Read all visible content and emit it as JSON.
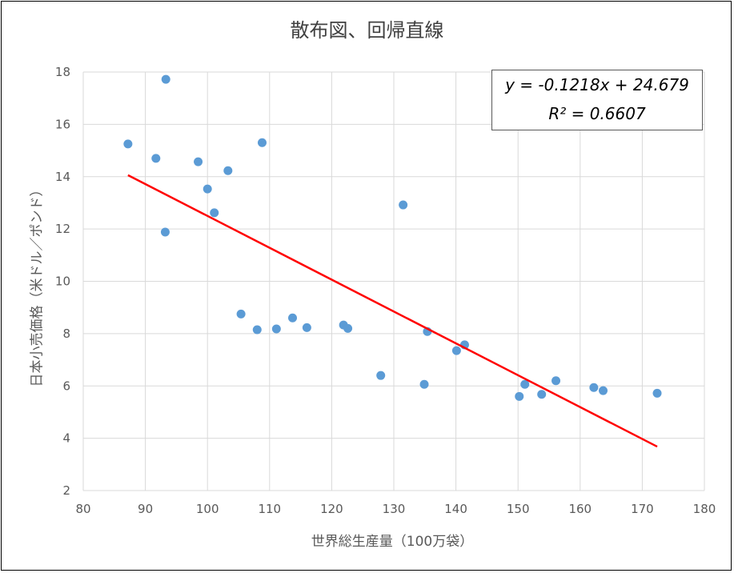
{
  "chart_data": {
    "type": "scatter",
    "title": "散布図、回帰直線",
    "xlabel": "世界総生産量（100万袋）",
    "ylabel": "日本小売価格（米ドル／ポンド）",
    "xlim": [
      80,
      180
    ],
    "ylim": [
      2,
      18
    ],
    "x_ticks": [
      "80",
      "90",
      "100",
      "110",
      "120",
      "130",
      "140",
      "150",
      "160",
      "170",
      "180"
    ],
    "y_ticks": [
      "2",
      "4",
      "6",
      "8",
      "10",
      "12",
      "14",
      "16",
      "18"
    ],
    "grid": true,
    "points": [
      {
        "x": 87.2,
        "y": 15.25
      },
      {
        "x": 91.7,
        "y": 14.7
      },
      {
        "x": 93.3,
        "y": 17.72
      },
      {
        "x": 93.2,
        "y": 11.88
      },
      {
        "x": 98.5,
        "y": 14.57
      },
      {
        "x": 100.0,
        "y": 13.53
      },
      {
        "x": 101.1,
        "y": 12.62
      },
      {
        "x": 103.3,
        "y": 14.23
      },
      {
        "x": 105.4,
        "y": 8.75
      },
      {
        "x": 108.0,
        "y": 8.15
      },
      {
        "x": 108.8,
        "y": 15.3
      },
      {
        "x": 111.1,
        "y": 8.18
      },
      {
        "x": 113.7,
        "y": 8.6
      },
      {
        "x": 116.0,
        "y": 8.23
      },
      {
        "x": 121.9,
        "y": 8.33
      },
      {
        "x": 122.6,
        "y": 8.2
      },
      {
        "x": 127.9,
        "y": 6.4
      },
      {
        "x": 131.5,
        "y": 12.92
      },
      {
        "x": 134.9,
        "y": 6.06
      },
      {
        "x": 135.4,
        "y": 8.08
      },
      {
        "x": 140.1,
        "y": 7.35
      },
      {
        "x": 141.4,
        "y": 7.57
      },
      {
        "x": 150.2,
        "y": 5.6
      },
      {
        "x": 151.1,
        "y": 6.06
      },
      {
        "x": 153.8,
        "y": 5.68
      },
      {
        "x": 156.1,
        "y": 6.2
      },
      {
        "x": 162.2,
        "y": 5.94
      },
      {
        "x": 163.7,
        "y": 5.82
      },
      {
        "x": 172.4,
        "y": 5.72
      }
    ],
    "trendline": {
      "slope": -0.1218,
      "intercept": 24.679,
      "x_start": 87.2,
      "x_end": 172.4
    },
    "equation_line1": "y = -0.1218x + 24.679",
    "equation_line2": "R² = 0.6607",
    "colors": {
      "points": "#5b9bd5",
      "trendline": "#ff0000",
      "grid": "#d9d9d9"
    }
  }
}
